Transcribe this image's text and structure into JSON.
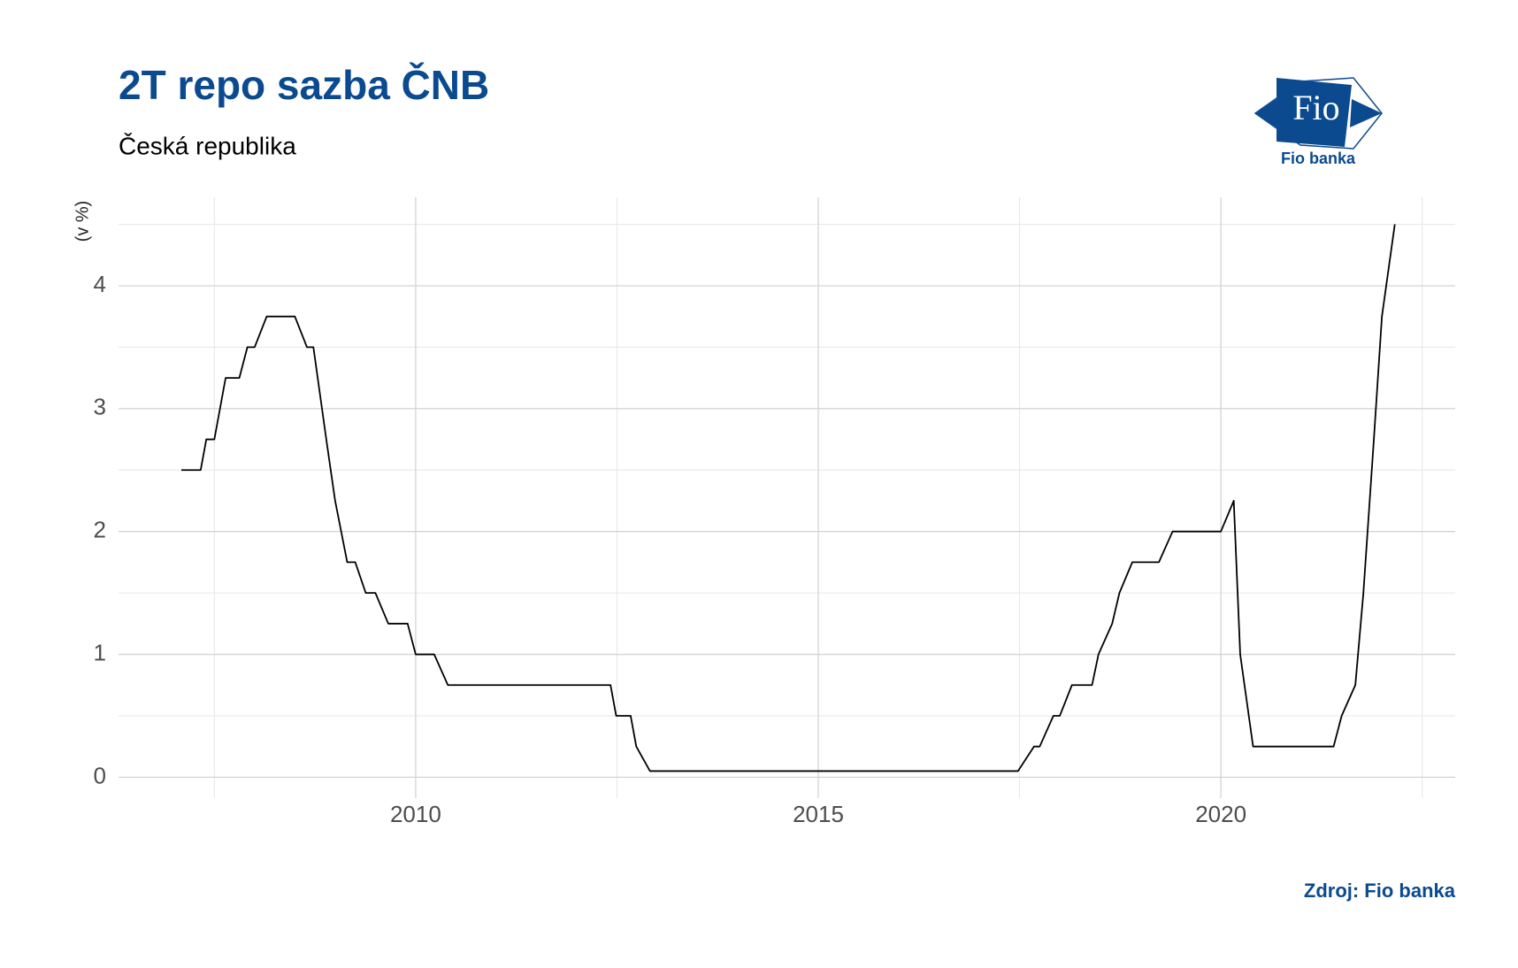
{
  "chart_data": {
    "type": "line",
    "title": "2T repo sazba ČNB",
    "subtitle": "Česká republika",
    "y_label": "(v %)",
    "source": "Zdroj: Fio banka",
    "logo_text": "Fio",
    "logo_caption": "Fio banka",
    "color": "#000000",
    "grid": true,
    "x": [
      2007.09,
      2007.33,
      2007.4,
      2007.5,
      2007.64,
      2007.81,
      2007.91,
      2008.0,
      2008.15,
      2008.5,
      2008.65,
      2008.73,
      2008.89,
      2009.0,
      2009.15,
      2009.25,
      2009.38,
      2009.5,
      2009.66,
      2009.9,
      2010.0,
      2010.23,
      2010.4,
      2012.42,
      2012.49,
      2012.67,
      2012.74,
      2012.91,
      2017.48,
      2017.68,
      2017.75,
      2017.92,
      2018.0,
      2018.15,
      2018.4,
      2018.48,
      2018.65,
      2018.74,
      2018.9,
      2019.23,
      2019.4,
      2020.0,
      2020.16,
      2020.24,
      2020.4,
      2021.4,
      2021.5,
      2021.67,
      2021.77,
      2021.9,
      2022.0,
      2022.16
    ],
    "values": [
      2.5,
      2.5,
      2.75,
      2.75,
      3.25,
      3.25,
      3.5,
      3.5,
      3.75,
      3.75,
      3.5,
      3.5,
      2.75,
      2.25,
      1.75,
      1.75,
      1.5,
      1.5,
      1.25,
      1.25,
      1.0,
      1.0,
      0.75,
      0.75,
      0.5,
      0.5,
      0.25,
      0.05,
      0.05,
      0.25,
      0.25,
      0.5,
      0.5,
      0.75,
      0.75,
      1.0,
      1.25,
      1.5,
      1.75,
      1.75,
      2.0,
      2.0,
      2.25,
      1.0,
      0.25,
      0.25,
      0.5,
      0.75,
      1.5,
      2.75,
      3.75,
      4.5
    ],
    "xlim": [
      2006.31,
      2022.91
    ],
    "xticks": [
      2010,
      2015,
      2020
    ],
    "ylim": [
      -0.17,
      4.72
    ],
    "yticks": [
      0,
      1,
      2,
      3,
      4
    ]
  }
}
